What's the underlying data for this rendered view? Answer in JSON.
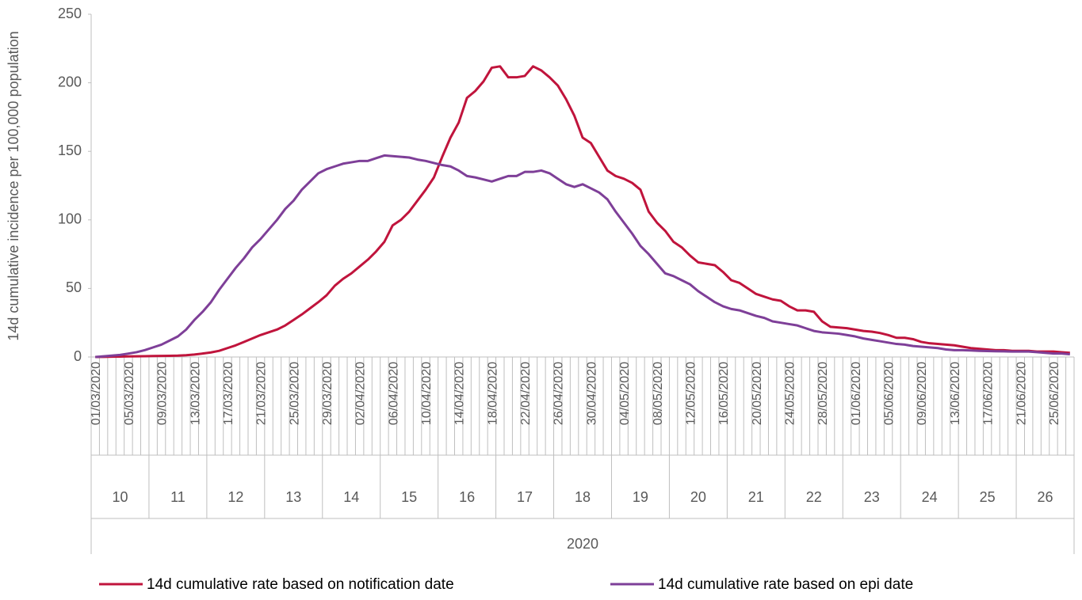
{
  "chart_data": {
    "type": "line",
    "y_axis_label": "14d cumulative incidence per 100,000 population",
    "categories": [
      "01/03/2020",
      null,
      null,
      null,
      "05/03/2020",
      null,
      null,
      null,
      "09/03/2020",
      null,
      null,
      null,
      "13/03/2020",
      null,
      null,
      null,
      "17/03/2020",
      null,
      null,
      null,
      "21/03/2020",
      null,
      null,
      null,
      "25/03/2020",
      null,
      null,
      null,
      "29/03/2020",
      null,
      null,
      null,
      "02/04/2020",
      null,
      null,
      null,
      "06/04/2020",
      null,
      null,
      null,
      "10/04/2020",
      null,
      null,
      null,
      "14/04/2020",
      null,
      null,
      null,
      "18/04/2020",
      null,
      null,
      null,
      "22/04/2020",
      null,
      null,
      null,
      "26/04/2020",
      null,
      null,
      null,
      "30/04/2020",
      null,
      null,
      null,
      "04/05/2020",
      null,
      null,
      null,
      "08/05/2020",
      null,
      null,
      null,
      "12/05/2020",
      null,
      null,
      null,
      "16/05/2020",
      null,
      null,
      null,
      "20/05/2020",
      null,
      null,
      null,
      "24/05/2020",
      null,
      null,
      null,
      "28/05/2020",
      null,
      null,
      null,
      "01/06/2020",
      null,
      null,
      null,
      "05/06/2020",
      null,
      null,
      null,
      "09/06/2020",
      null,
      null,
      null,
      "13/06/2020",
      null,
      null,
      null,
      "17/06/2020",
      null,
      null,
      null,
      "21/06/2020",
      null,
      null,
      null,
      "25/06/2020",
      null,
      null
    ],
    "week_labels": [
      "10",
      "11",
      "12",
      "13",
      "14",
      "15",
      "16",
      "17",
      "18",
      "19",
      "20",
      "21",
      "22",
      "23",
      "24",
      "25",
      "26"
    ],
    "year_label": "2020",
    "series": [
      {
        "name": "14d cumulative rate based on notification date",
        "color": "#c0143c",
        "values": [
          0,
          0.1,
          0.2,
          0.3,
          0.4,
          0.5,
          0.6,
          0.7,
          0.8,
          0.9,
          1,
          1.3,
          1.8,
          2.5,
          3.3,
          4.5,
          6.5,
          8.5,
          11,
          13.5,
          16,
          18,
          20,
          23,
          27,
          31,
          35.5,
          40,
          45,
          52,
          57,
          61,
          66,
          71,
          77,
          84,
          96,
          100,
          106,
          114,
          122,
          131,
          146,
          160,
          171,
          189,
          194,
          201,
          211,
          212,
          204,
          204,
          205,
          212,
          209,
          204,
          198,
          188,
          176,
          160,
          156,
          146,
          136,
          132,
          130,
          127,
          122,
          106,
          98,
          92,
          84,
          80,
          74,
          69,
          68,
          67,
          62,
          56,
          54,
          50,
          46,
          44,
          42,
          41,
          37,
          34,
          34,
          33,
          26,
          22,
          21.5,
          21,
          20,
          19,
          18.5,
          17.5,
          16,
          14,
          14,
          13,
          11,
          10,
          9.5,
          9,
          8.5,
          7.5,
          6.5,
          6,
          5.5,
          5,
          5,
          4.5,
          4.5,
          4.5,
          4,
          4,
          4,
          3.5,
          3
        ]
      },
      {
        "name": "14d cumulative rate based on epi date",
        "color": "#7e3f98",
        "values": [
          0,
          0.5,
          1,
          1.5,
          2.5,
          3.5,
          5,
          7,
          9,
          12,
          15,
          20,
          27,
          33,
          40,
          49,
          57,
          65,
          72,
          80,
          86,
          93,
          100,
          108,
          114,
          122,
          128,
          134,
          137,
          139,
          141,
          142,
          143,
          143,
          145,
          147,
          146.5,
          146,
          145.5,
          144,
          143,
          141.5,
          140,
          139,
          136,
          132,
          131,
          129.5,
          128,
          130,
          132,
          132,
          135,
          135,
          136,
          134,
          130,
          126,
          124,
          126,
          123,
          120,
          115,
          106,
          98,
          90,
          81,
          75,
          68,
          61,
          59,
          56,
          53,
          48,
          44,
          40,
          37,
          35,
          34,
          32,
          30,
          28.5,
          26,
          25,
          24,
          23,
          21,
          19,
          18,
          17.5,
          17,
          16,
          15,
          13.5,
          12.5,
          11.5,
          10.5,
          9.5,
          9,
          8,
          7.5,
          7,
          6.5,
          5.5,
          5,
          5,
          4.8,
          4.5,
          4.3,
          4.2,
          4.1,
          4,
          4,
          4,
          3.5,
          3,
          2.5,
          2.5,
          2
        ]
      }
    ],
    "ylim": [
      0,
      250
    ],
    "yticks": [
      0,
      50,
      100,
      150,
      200,
      250
    ],
    "grid": false
  }
}
